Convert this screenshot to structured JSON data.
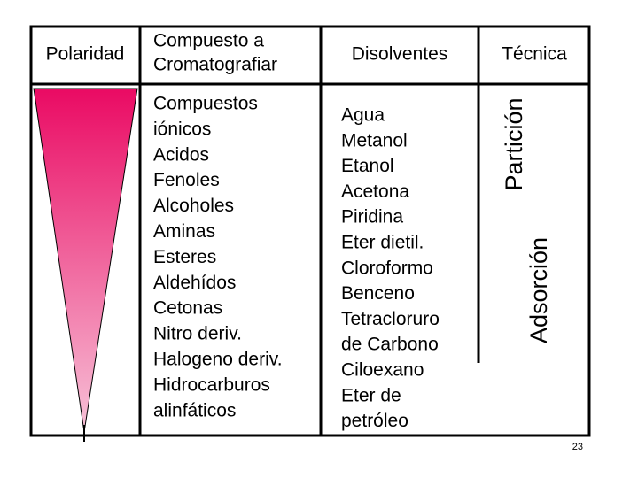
{
  "header": {
    "polarity": "Polaridad",
    "compound": [
      "Compuesto a",
      "Cromatografiar"
    ],
    "solvents": "Disolventes",
    "technique": "Técnica"
  },
  "compounds": [
    "Compuestos",
    "iónicos",
    "Acidos",
    "Fenoles",
    "Alcoholes",
    "Aminas",
    "Esteres",
    "Aldehídos",
    "Cetonas",
    "Nitro deriv.",
    "Halogeno deriv.",
    "Hidrocarburos",
    "alinfáticos"
  ],
  "solvents": [
    "Agua",
    "Metanol",
    "Etanol",
    "Acetona",
    "Piridina",
    "Eter dietil.",
    "Cloroformo",
    "Benceno",
    "Tetracloruro",
    "de Carbono",
    "Ciloexano",
    "Eter de",
    "petróleo"
  ],
  "techniques": [
    "Partición",
    "Adsorción"
  ],
  "page_number": "23"
}
